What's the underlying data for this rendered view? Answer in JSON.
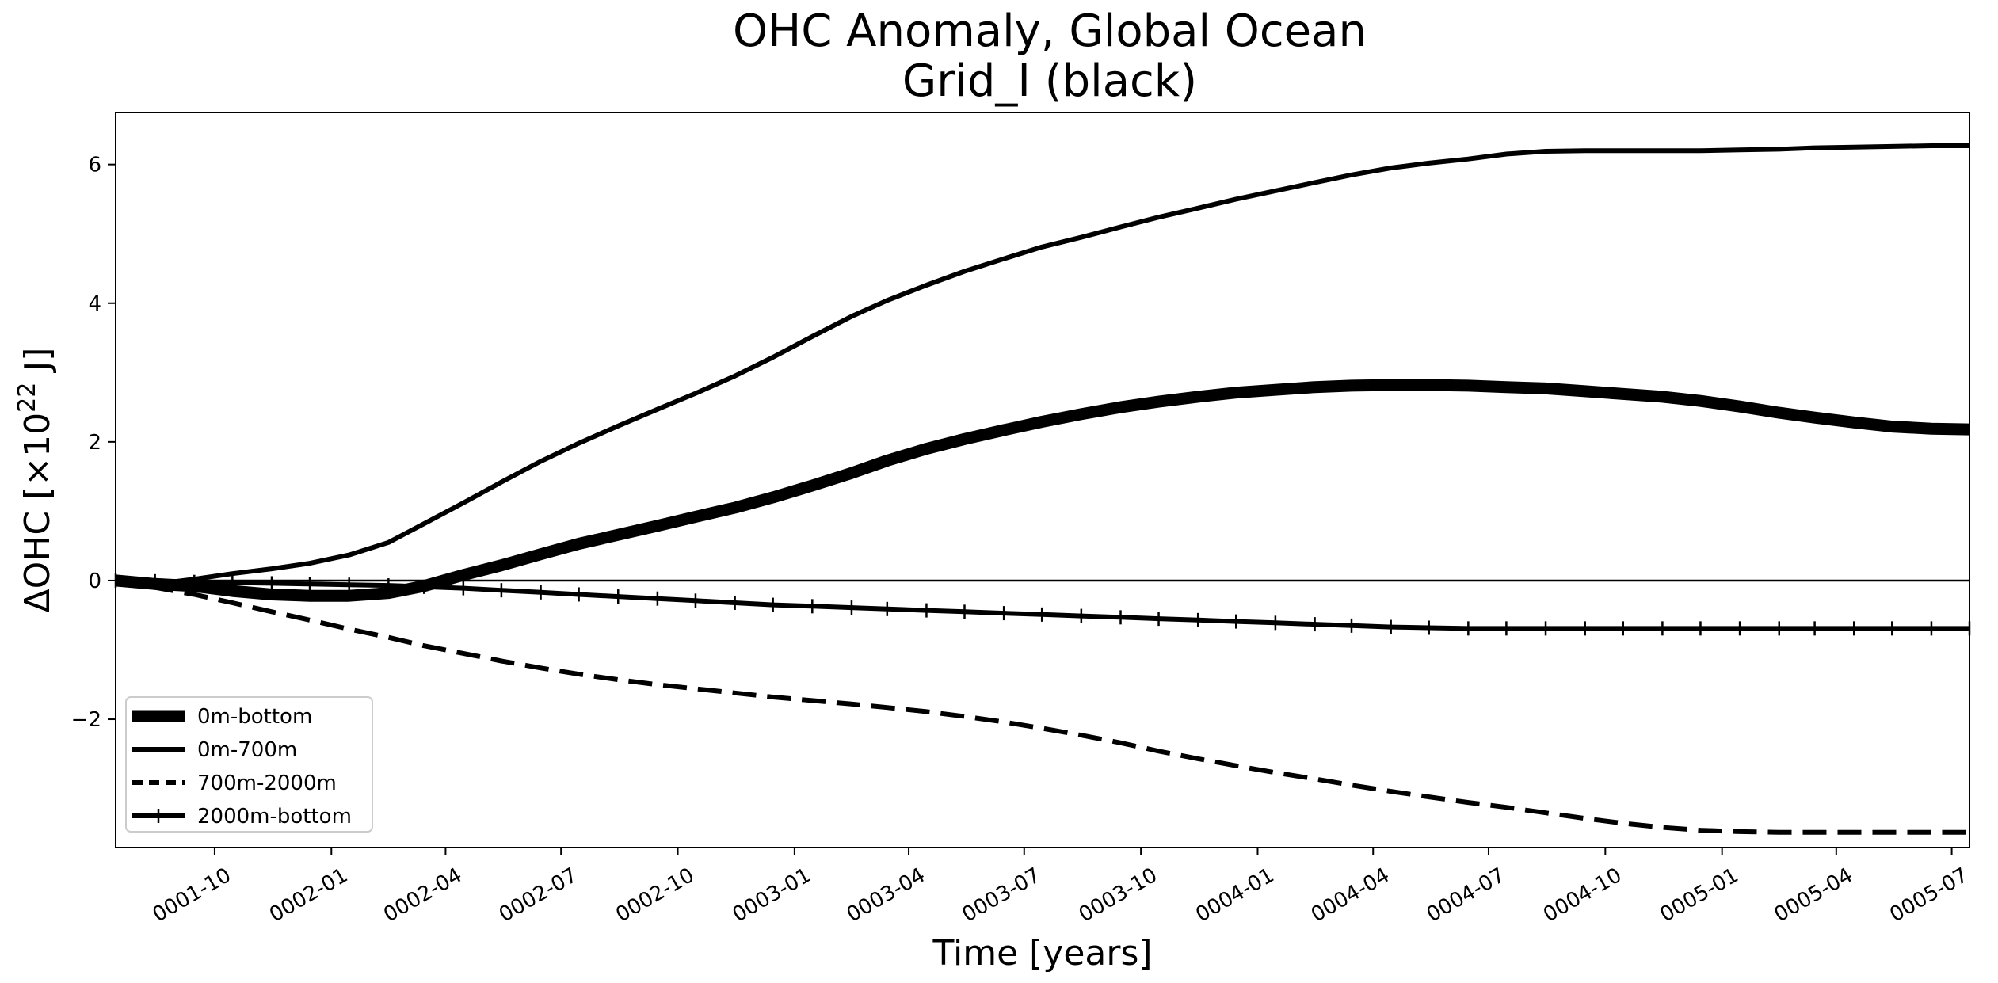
{
  "chart_data": {
    "type": "line",
    "title": "OHC Anomaly, Global Ocean",
    "subtitle": "Grid_I (black)",
    "xlabel": "Time [years]",
    "ylabel": "ΔOHC [×10²² J]",
    "ylabel_parts": {
      "main": "ΔOHC [×10",
      "exp": "22",
      "end": " J]"
    },
    "xlim": [
      "0001-07-15",
      "0005-07-15"
    ],
    "ylim": [
      -3.85,
      6.75
    ],
    "grid": false,
    "legend_position": "lower-left",
    "x_ticks": [
      "0001-10",
      "0002-01",
      "0002-04",
      "0002-07",
      "0002-10",
      "0003-01",
      "0003-04",
      "0003-07",
      "0003-10",
      "0004-01",
      "0004-04",
      "0004-07",
      "0004-10",
      "0005-01",
      "0005-04",
      "0005-07"
    ],
    "y_ticks": [
      -2,
      0,
      2,
      4,
      6
    ],
    "y_tick_labels": [
      "−2",
      "0",
      "2",
      "4",
      "6"
    ],
    "reference_line_y": 0,
    "x": [
      "0001-07-15",
      "0001-08-15",
      "0001-09-15",
      "0001-10-15",
      "0001-11-15",
      "0001-12-15",
      "0002-01-15",
      "0002-02-15",
      "0002-03-15",
      "0002-04-15",
      "0002-05-15",
      "0002-06-15",
      "0002-07-15",
      "0002-08-15",
      "0002-09-15",
      "0002-10-15",
      "0002-11-15",
      "0002-12-15",
      "0003-01-15",
      "0003-02-15",
      "0003-03-15",
      "0003-04-15",
      "0003-05-15",
      "0003-06-15",
      "0003-07-15",
      "0003-08-15",
      "0003-09-15",
      "0003-10-15",
      "0003-11-15",
      "0003-12-15",
      "0004-01-15",
      "0004-02-15",
      "0004-03-15",
      "0004-04-15",
      "0004-05-15",
      "0004-06-15",
      "0004-07-15",
      "0004-08-15",
      "0004-09-15",
      "0004-10-15",
      "0004-11-15",
      "0004-12-15",
      "0005-01-15",
      "0005-02-15",
      "0005-03-15",
      "0005-04-15",
      "0005-05-15",
      "0005-06-15",
      "0005-07-15"
    ],
    "series": [
      {
        "name": "0m-bottom",
        "style": "solid",
        "marker": "none",
        "weight": "heavy",
        "values": [
          0.0,
          -0.05,
          -0.08,
          -0.15,
          -0.2,
          -0.22,
          -0.22,
          -0.18,
          -0.08,
          0.08,
          0.22,
          0.38,
          0.53,
          0.66,
          0.79,
          0.92,
          1.05,
          1.2,
          1.37,
          1.55,
          1.73,
          1.9,
          2.04,
          2.17,
          2.29,
          2.4,
          2.5,
          2.58,
          2.65,
          2.71,
          2.75,
          2.79,
          2.81,
          2.82,
          2.82,
          2.81,
          2.79,
          2.77,
          2.73,
          2.69,
          2.65,
          2.59,
          2.51,
          2.42,
          2.35,
          2.28,
          2.22,
          2.19,
          2.18
        ]
      },
      {
        "name": "0m-700m",
        "style": "solid",
        "marker": "none",
        "weight": "medium",
        "values": [
          0.0,
          -0.05,
          0.02,
          0.1,
          0.17,
          0.25,
          0.37,
          0.55,
          0.82,
          1.12,
          1.42,
          1.72,
          1.98,
          2.23,
          2.47,
          2.7,
          2.95,
          3.22,
          3.52,
          3.81,
          4.04,
          4.26,
          4.46,
          4.64,
          4.81,
          4.95,
          5.1,
          5.24,
          5.37,
          5.5,
          5.62,
          5.74,
          5.85,
          5.95,
          6.02,
          6.08,
          6.15,
          6.19,
          6.2,
          6.2,
          6.2,
          6.2,
          6.21,
          6.22,
          6.24,
          6.25,
          6.26,
          6.27,
          6.27
        ]
      },
      {
        "name": "700m-2000m",
        "style": "dashed",
        "marker": "none",
        "weight": "medium",
        "values": [
          0.0,
          -0.1,
          -0.2,
          -0.32,
          -0.45,
          -0.57,
          -0.7,
          -0.82,
          -0.94,
          -1.05,
          -1.16,
          -1.26,
          -1.35,
          -1.43,
          -1.5,
          -1.56,
          -1.62,
          -1.68,
          -1.73,
          -1.78,
          -1.83,
          -1.89,
          -1.96,
          -2.04,
          -2.13,
          -2.23,
          -2.34,
          -2.46,
          -2.57,
          -2.67,
          -2.77,
          -2.86,
          -2.95,
          -3.04,
          -3.12,
          -3.2,
          -3.27,
          -3.35,
          -3.43,
          -3.5,
          -3.56,
          -3.6,
          -3.62,
          -3.63,
          -3.63,
          -3.63,
          -3.63,
          -3.63,
          -3.63
        ]
      },
      {
        "name": "2000m-bottom",
        "style": "solid",
        "marker": "tick",
        "weight": "medium",
        "values": [
          0.0,
          -0.01,
          -0.02,
          -0.03,
          -0.04,
          -0.05,
          -0.06,
          -0.07,
          -0.09,
          -0.11,
          -0.14,
          -0.17,
          -0.2,
          -0.23,
          -0.26,
          -0.29,
          -0.32,
          -0.35,
          -0.37,
          -0.39,
          -0.41,
          -0.43,
          -0.45,
          -0.47,
          -0.49,
          -0.51,
          -0.53,
          -0.55,
          -0.57,
          -0.59,
          -0.61,
          -0.63,
          -0.65,
          -0.67,
          -0.68,
          -0.69,
          -0.69,
          -0.69,
          -0.69,
          -0.69,
          -0.69,
          -0.69,
          -0.69,
          -0.69,
          -0.69,
          -0.69,
          -0.69,
          -0.69,
          -0.69
        ]
      }
    ]
  }
}
